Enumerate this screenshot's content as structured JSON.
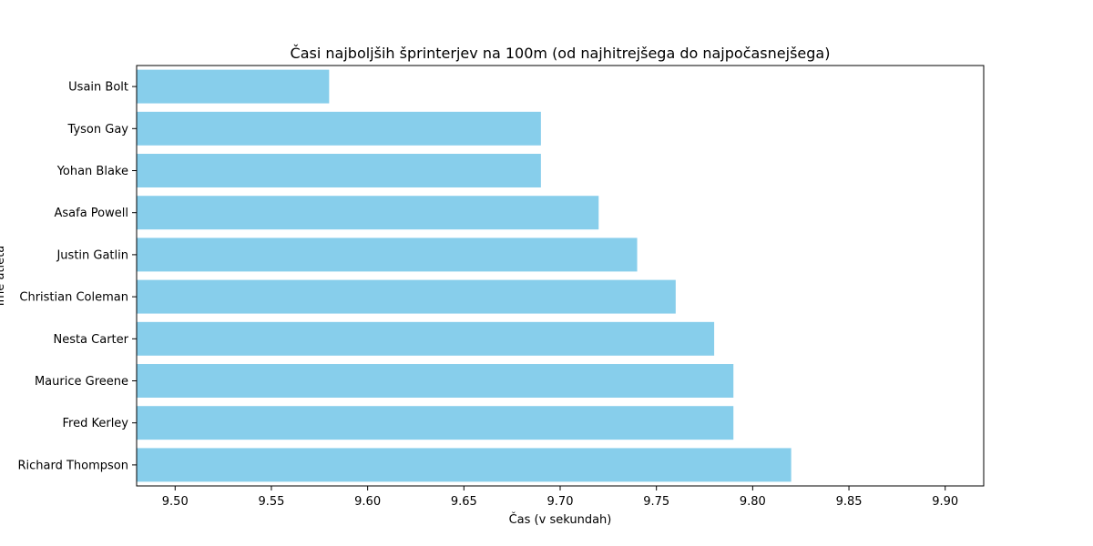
{
  "chart_data": {
    "type": "bar",
    "orientation": "horizontal",
    "title": "Časi najboljših šprinterjev na 100m (od najhitrejšega do najpočasnejšega)",
    "xlabel": "Čas (v sekundah)",
    "ylabel": "Ime atleta",
    "categories": [
      "Usain Bolt",
      "Tyson Gay",
      "Yohan Blake",
      "Asafa Powell",
      "Justin Gatlin",
      "Christian Coleman",
      "Nesta Carter",
      "Maurice Greene",
      "Fred Kerley",
      "Richard Thompson"
    ],
    "values": [
      9.58,
      9.69,
      9.69,
      9.72,
      9.74,
      9.76,
      9.78,
      9.79,
      9.79,
      9.82
    ],
    "xlim": [
      9.48,
      9.92
    ],
    "xticks": [
      "9.50",
      "9.55",
      "9.60",
      "9.65",
      "9.70",
      "9.75",
      "9.80",
      "9.85",
      "9.90"
    ],
    "bar_color": "#87CEEB",
    "grid": false
  }
}
